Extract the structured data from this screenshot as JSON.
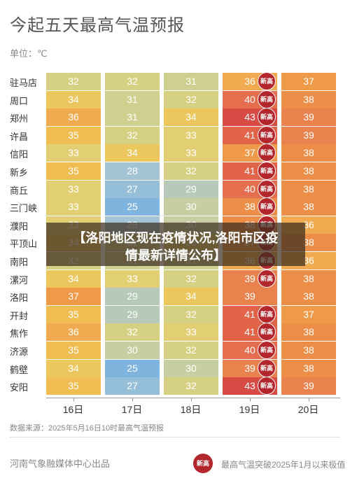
{
  "title": "今起五天最高气温预报",
  "unit_label": "单位：℃",
  "overlay": {
    "line1": "【洛阳地区现在疫情状况,洛阳市区疫",
    "line2": "情最新详情公布】"
  },
  "chart_data": {
    "type": "heatmap",
    "title": "今起五天最高气温预报",
    "unit": "℃",
    "x": [
      "16日",
      "17日",
      "18日",
      "19日",
      "20日"
    ],
    "y": [
      "驻马店",
      "周口",
      "郑州",
      "许昌",
      "信阳",
      "新乡",
      "商丘",
      "三门峡",
      "濮阳",
      "平顶山",
      "南阳",
      "漯河",
      "洛阳",
      "开封",
      "焦作",
      "济源",
      "鹤壁",
      "安阳"
    ],
    "values": [
      [
        32,
        32,
        31,
        36,
        37
      ],
      [
        34,
        31,
        32,
        40,
        38
      ],
      [
        36,
        31,
        34,
        43,
        39
      ],
      [
        35,
        32,
        33,
        41,
        39
      ],
      [
        33,
        34,
        33,
        37,
        38
      ],
      [
        35,
        28,
        32,
        41,
        38
      ],
      [
        33,
        27,
        29,
        40,
        38
      ],
      [
        33,
        25,
        30,
        38,
        38
      ],
      [
        33,
        28,
        30,
        38,
        36
      ],
      [
        34,
        31,
        33,
        37,
        38
      ],
      [
        32,
        31,
        31,
        36,
        36
      ],
      [
        34,
        33,
        32,
        39,
        38
      ],
      [
        37,
        29,
        34,
        39,
        38
      ],
      [
        35,
        29,
        32,
        41,
        37
      ],
      [
        36,
        32,
        33,
        41,
        38
      ],
      [
        35,
        30,
        32,
        40,
        38
      ],
      [
        34,
        25,
        30,
        39,
        38
      ],
      [
        35,
        27,
        32,
        43,
        39
      ]
    ],
    "record_badge_text": "新高",
    "record_cells": [
      [
        0,
        3
      ],
      [
        1,
        3
      ],
      [
        2,
        3
      ],
      [
        3,
        3
      ],
      [
        4,
        3
      ],
      [
        5,
        3
      ],
      [
        6,
        3
      ],
      [
        7,
        3
      ],
      [
        8,
        3
      ],
      [
        9,
        3
      ],
      [
        10,
        3
      ],
      [
        11,
        3
      ],
      [
        13,
        3
      ],
      [
        14,
        3
      ],
      [
        15,
        3
      ],
      [
        16,
        3
      ],
      [
        17,
        3
      ]
    ],
    "colors": {
      "25": "#7eb4dd",
      "27": "#95bfd9",
      "28": "#a2c4d4",
      "29": "#b7c9b9",
      "30": "#c7cfa2",
      "31": "#cfd08f",
      "32": "#d6d083",
      "33": "#e2cf74",
      "34": "#ecc75e",
      "35": "#f0bd52",
      "36": "#f0aa4f",
      "37": "#ef9a48",
      "38": "#ec8e47",
      "39": "#e9824c",
      "40": "#e46e4e",
      "41": "#e16449",
      "43": "#d84b44"
    }
  },
  "source_text": "数据来源：2025年5月16日10时最高气温预报",
  "publisher_text": "河南气象融媒体中心出品",
  "legend_badge_text": "新高",
  "legend_text": "最高气温突破2025年1月以来极值"
}
